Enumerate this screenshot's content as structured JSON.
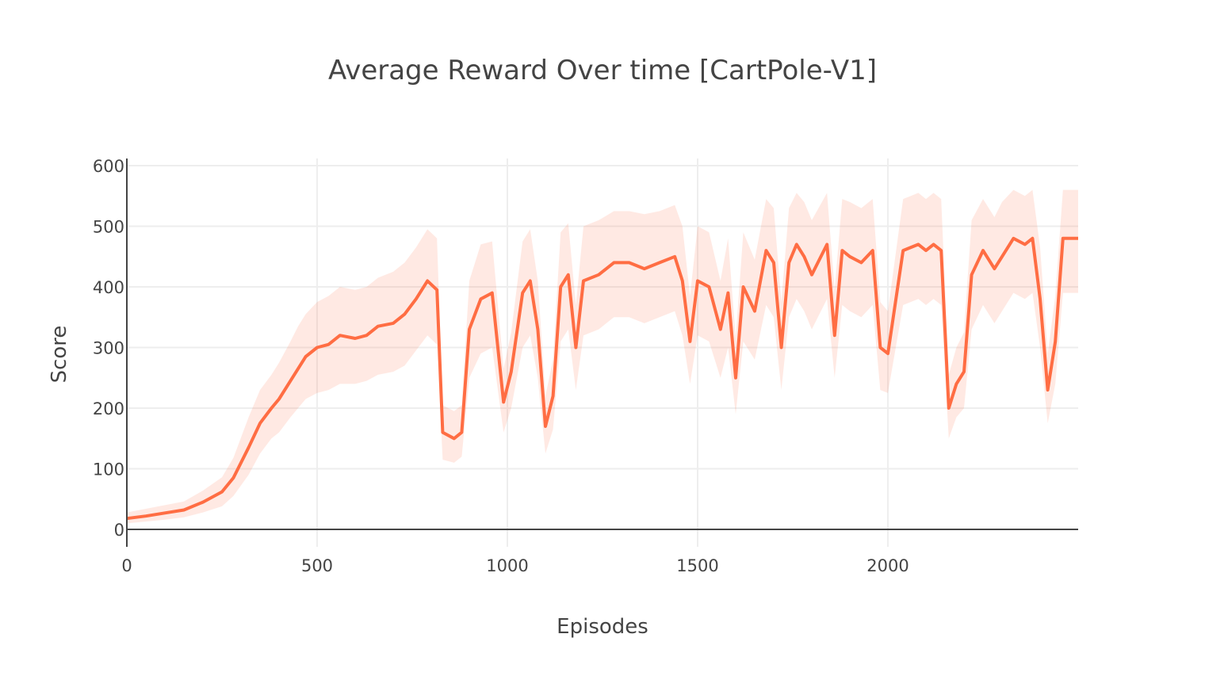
{
  "chart_data": {
    "type": "line",
    "title": "Average Reward Over time [CartPole-V1]",
    "xlabel": "Episodes",
    "ylabel": "Score",
    "xlim": [
      0,
      2500
    ],
    "ylim": [
      -30,
      610
    ],
    "x_ticks": [
      0,
      500,
      1000,
      1500,
      2000
    ],
    "y_ticks": [
      0,
      100,
      200,
      300,
      400,
      500,
      600
    ],
    "grid": true,
    "legend": "none",
    "colors": {
      "line": "#ff6d43",
      "band": "#ff6d43",
      "grid": "#eeeeee",
      "axis": "#444444",
      "text": "#444444"
    },
    "series": [
      {
        "x": [
          0,
          50,
          100,
          150,
          200,
          250,
          280,
          320,
          350,
          380,
          400,
          430,
          450,
          470,
          500,
          530,
          560,
          600,
          630,
          660,
          700,
          730,
          760,
          790,
          815,
          830,
          860,
          880,
          900,
          930,
          960,
          990,
          1010,
          1040,
          1060,
          1080,
          1100,
          1120,
          1140,
          1160,
          1180,
          1200,
          1240,
          1280,
          1320,
          1360,
          1400,
          1440,
          1460,
          1480,
          1500,
          1530,
          1560,
          1580,
          1600,
          1620,
          1650,
          1680,
          1700,
          1720,
          1740,
          1760,
          1780,
          1800,
          1840,
          1860,
          1880,
          1900,
          1930,
          1960,
          1980,
          2000,
          2040,
          2080,
          2100,
          2120,
          2140,
          2160,
          2180,
          2200,
          2220,
          2250,
          2280,
          2300,
          2330,
          2360,
          2380,
          2400,
          2420,
          2440,
          2460,
          2500
        ],
        "values": [
          18,
          22,
          27,
          32,
          45,
          62,
          85,
          135,
          175,
          200,
          215,
          245,
          265,
          285,
          300,
          305,
          320,
          315,
          320,
          335,
          340,
          355,
          380,
          410,
          395,
          160,
          150,
          160,
          330,
          380,
          390,
          210,
          260,
          390,
          410,
          330,
          170,
          220,
          400,
          420,
          300,
          410,
          420,
          440,
          440,
          430,
          440,
          450,
          410,
          310,
          410,
          400,
          330,
          390,
          250,
          400,
          360,
          460,
          440,
          300,
          440,
          470,
          450,
          420,
          470,
          320,
          460,
          450,
          440,
          460,
          300,
          290,
          460,
          470,
          460,
          470,
          460,
          200,
          240,
          260,
          420,
          460,
          430,
          450,
          480,
          470,
          480,
          380,
          230,
          310,
          480,
          480
        ],
        "lower": [
          10,
          13,
          16,
          20,
          28,
          38,
          55,
          90,
          125,
          150,
          160,
          185,
          200,
          215,
          225,
          230,
          240,
          240,
          245,
          255,
          260,
          270,
          295,
          320,
          305,
          115,
          110,
          120,
          250,
          290,
          300,
          160,
          200,
          300,
          320,
          250,
          125,
          165,
          310,
          330,
          230,
          320,
          330,
          350,
          350,
          340,
          350,
          360,
          320,
          240,
          320,
          310,
          250,
          300,
          190,
          310,
          280,
          370,
          350,
          230,
          350,
          380,
          360,
          330,
          380,
          250,
          370,
          360,
          350,
          370,
          230,
          225,
          370,
          380,
          370,
          380,
          370,
          150,
          185,
          200,
          330,
          370,
          340,
          360,
          390,
          380,
          390,
          300,
          175,
          240,
          390,
          390
        ],
        "upper": [
          28,
          34,
          40,
          46,
          64,
          86,
          118,
          185,
          230,
          255,
          275,
          310,
          335,
          355,
          375,
          385,
          400,
          395,
          400,
          415,
          425,
          440,
          465,
          495,
          480,
          205,
          195,
          205,
          410,
          470,
          475,
          265,
          325,
          475,
          495,
          410,
          220,
          280,
          490,
          505,
          370,
          500,
          510,
          525,
          525,
          520,
          525,
          535,
          500,
          385,
          500,
          490,
          410,
          480,
          315,
          490,
          445,
          545,
          530,
          375,
          530,
          555,
          540,
          510,
          555,
          395,
          545,
          540,
          530,
          545,
          375,
          360,
          545,
          555,
          545,
          555,
          545,
          255,
          300,
          325,
          510,
          545,
          515,
          540,
          560,
          550,
          560,
          465,
          290,
          385,
          560,
          560
        ]
      }
    ]
  }
}
